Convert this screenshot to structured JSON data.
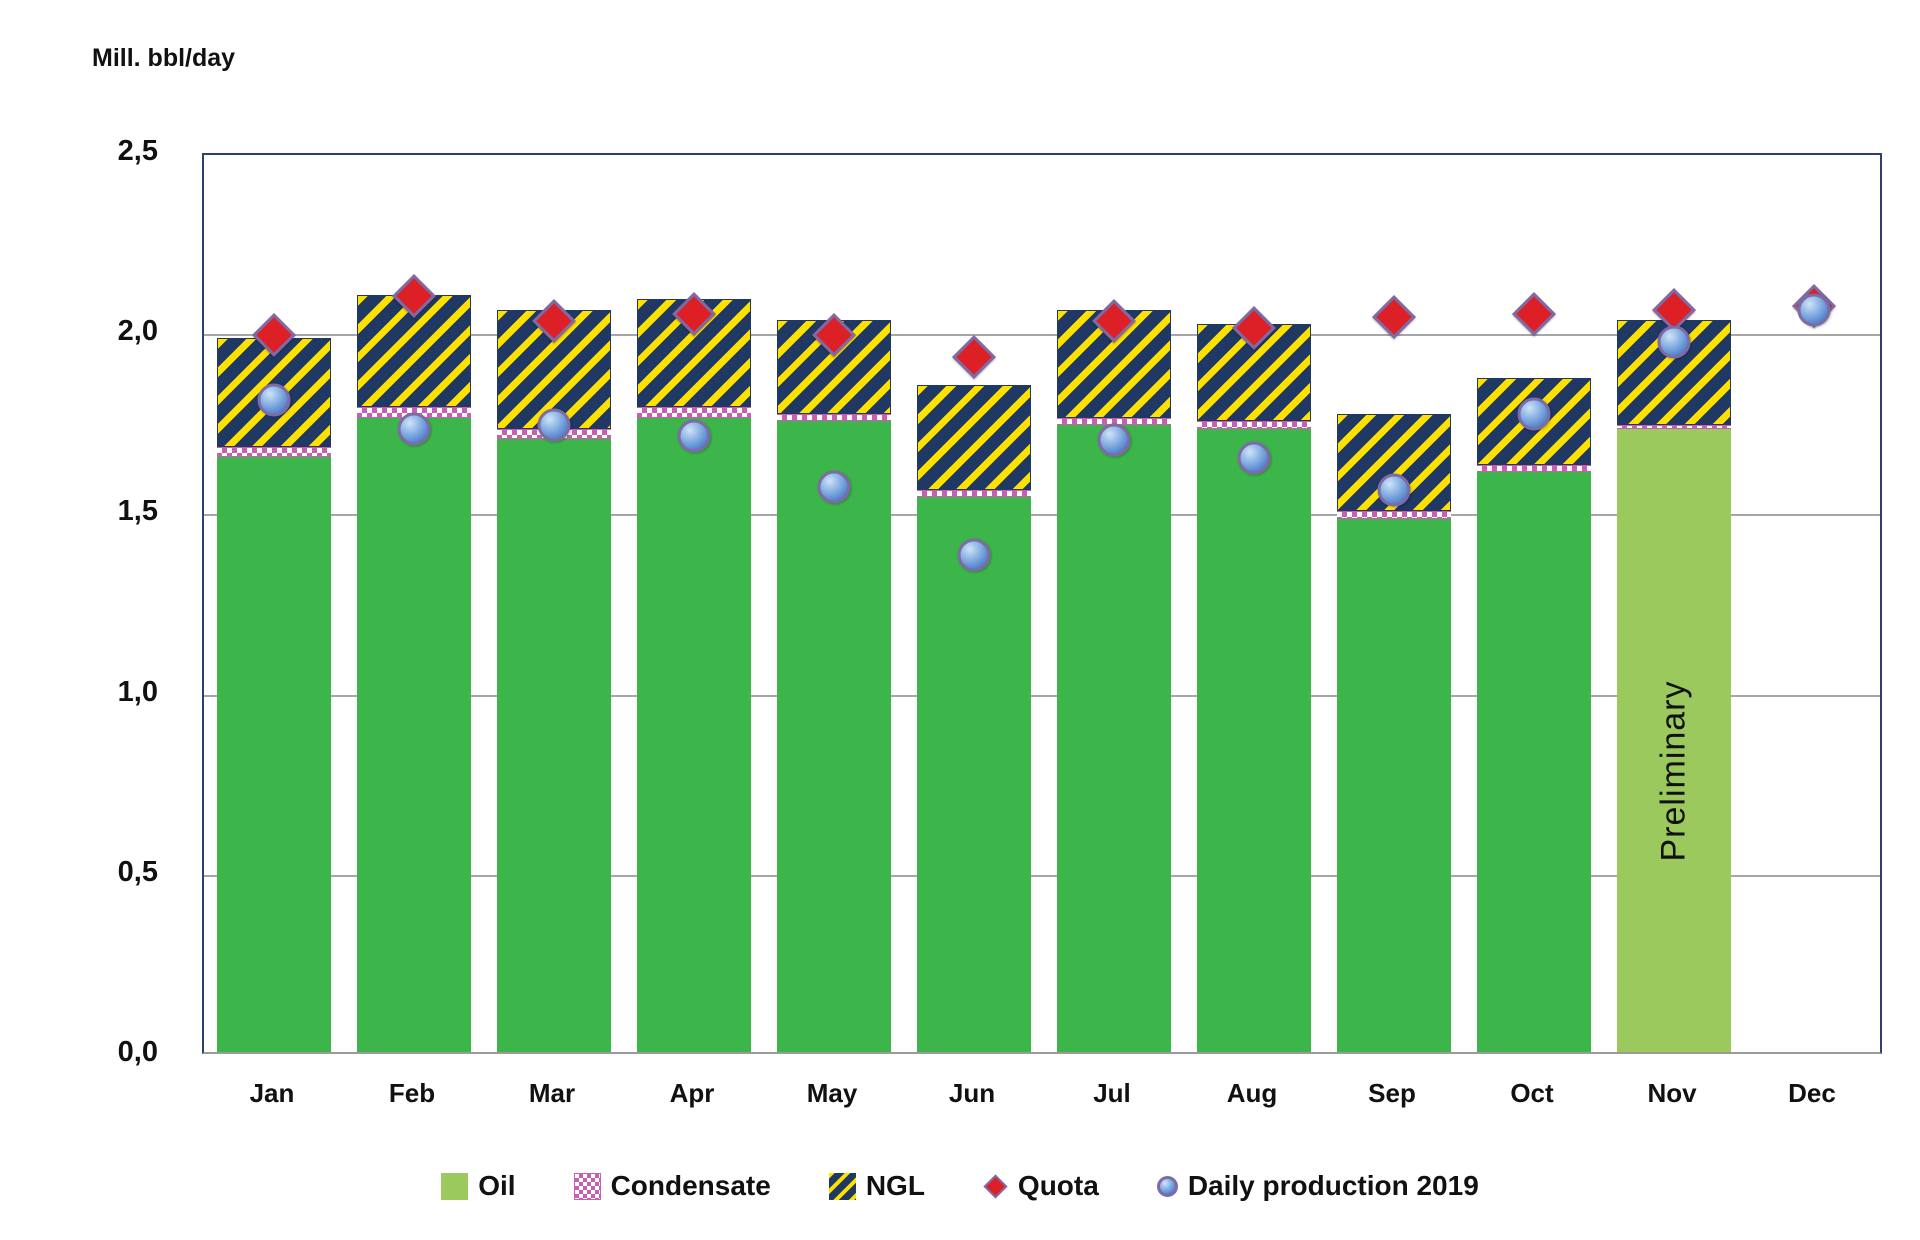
{
  "chart_data": {
    "type": "bar",
    "subtype": "stacked-bars-with-scatter-overlay",
    "title": "Mill. bbl/day",
    "ylabel": "Mill. bbl/day",
    "xlabel": "",
    "categories": [
      "Jan",
      "Feb",
      "Mar",
      "Apr",
      "May",
      "Jun",
      "Jul",
      "Aug",
      "Sep",
      "Oct",
      "Nov",
      "Dec"
    ],
    "series": [
      {
        "name": "Oil",
        "type": "bar-stack",
        "values": [
          1.65,
          1.76,
          1.7,
          1.76,
          1.75,
          1.54,
          1.74,
          1.73,
          1.48,
          1.61,
          1.73,
          null
        ]
      },
      {
        "name": "Condensate",
        "type": "bar-stack",
        "values": [
          0.03,
          0.03,
          0.03,
          0.03,
          0.02,
          0.02,
          0.02,
          0.02,
          0.02,
          0.02,
          0.01,
          null
        ]
      },
      {
        "name": "NGL",
        "type": "bar-stack",
        "values": [
          0.3,
          0.31,
          0.33,
          0.3,
          0.26,
          0.29,
          0.3,
          0.27,
          0.27,
          0.24,
          0.29,
          null
        ]
      },
      {
        "name": "Quota",
        "type": "scatter-diamond",
        "values": [
          2.0,
          2.11,
          2.04,
          2.06,
          2.0,
          1.94,
          2.04,
          2.02,
          2.05,
          2.06,
          2.07,
          2.08
        ]
      },
      {
        "name": "Daily production 2019",
        "type": "scatter-circle",
        "values": [
          1.82,
          1.74,
          1.75,
          1.72,
          1.58,
          1.39,
          1.71,
          1.66,
          1.57,
          1.78,
          1.98,
          2.07
        ]
      }
    ],
    "ylim": [
      0,
      2.5
    ],
    "ytick_labels": [
      "0,0",
      "0,5",
      "1,0",
      "1,5",
      "2,0",
      "2,5"
    ],
    "ytick_values": [
      0,
      0.5,
      1.0,
      1.5,
      2.0,
      2.5
    ],
    "grid": true,
    "legend_position": "bottom",
    "annotations": [
      {
        "text": "Preliminary",
        "month": "Nov",
        "month_index": 10,
        "note": "Nov oil bar drawn in light green"
      }
    ]
  },
  "legend": {
    "items": [
      {
        "label": "Oil",
        "swatch": "light-green-square"
      },
      {
        "label": "Condensate",
        "swatch": "pink-checker-square"
      },
      {
        "label": "NGL",
        "swatch": "navy-yellow-hatch-square"
      },
      {
        "label": "Quota",
        "swatch": "red-diamond"
      },
      {
        "label": "Daily production 2019",
        "swatch": "blue-sphere"
      }
    ]
  },
  "colors": {
    "oil": "#3CB54A",
    "oil_preliminary": "#9BC95E",
    "condensate": "#C95FB0",
    "ngl_base": "#1F3864",
    "ngl_stripe": "#FFE100",
    "quota": "#DD1F26",
    "daily_production": "#5B8BD0",
    "marker_edge": "#7E6AA5",
    "frame": "#2F3F6E",
    "gridline": "#A6A6A6",
    "axis_bottom_line": "#9A9A9A",
    "text": "#111111"
  }
}
